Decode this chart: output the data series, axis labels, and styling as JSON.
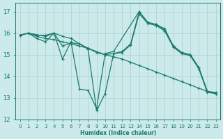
{
  "background_color": "#cceaea",
  "grid_color": "#aed4d4",
  "line_color": "#1a7a6e",
  "xlabel": "Humidex (Indice chaleur)",
  "xlim": [
    -0.5,
    23.5
  ],
  "ylim": [
    12,
    17.4
  ],
  "yticks": [
    12,
    13,
    14,
    15,
    16,
    17
  ],
  "xticks": [
    0,
    1,
    2,
    3,
    4,
    5,
    6,
    7,
    8,
    9,
    10,
    11,
    12,
    13,
    14,
    15,
    16,
    17,
    18,
    19,
    20,
    21,
    22,
    23
  ],
  "lines": [
    {
      "x": [
        0,
        1,
        2,
        3,
        4,
        5,
        6,
        7,
        8,
        9,
        10,
        11,
        12,
        13,
        14,
        15,
        16,
        17,
        18,
        19,
        20,
        21,
        22,
        23
      ],
      "y": [
        15.9,
        16.0,
        15.85,
        15.75,
        15.7,
        15.6,
        15.5,
        15.4,
        15.3,
        15.1,
        15.0,
        14.9,
        14.8,
        14.65,
        14.5,
        14.35,
        14.2,
        14.05,
        13.9,
        13.75,
        13.6,
        13.45,
        13.3,
        13.2
      ]
    },
    {
      "x": [
        0,
        1,
        2,
        3,
        4,
        5,
        6,
        7,
        8,
        9,
        10,
        11,
        12,
        13,
        14,
        15,
        16,
        17,
        18,
        19,
        20,
        21,
        22,
        23
      ],
      "y": [
        15.9,
        16.0,
        15.9,
        15.9,
        16.0,
        15.85,
        15.75,
        15.5,
        15.25,
        12.4,
        13.2,
        15.05,
        15.15,
        15.5,
        17.0,
        16.5,
        16.4,
        16.15,
        15.4,
        15.1,
        15.0,
        14.4,
        13.3,
        13.25
      ]
    },
    {
      "x": [
        0,
        1,
        3,
        4,
        5,
        6,
        7,
        8,
        9,
        10,
        11,
        14,
        15,
        16,
        17,
        18,
        19,
        20,
        21,
        22,
        23
      ],
      "y": [
        15.9,
        16.0,
        15.85,
        16.0,
        14.8,
        15.6,
        13.4,
        13.35,
        12.5,
        15.05,
        15.15,
        17.0,
        16.5,
        16.4,
        16.2,
        15.4,
        15.1,
        15.0,
        14.4,
        13.3,
        13.2
      ]
    },
    {
      "x": [
        0,
        1,
        2,
        3,
        4,
        5,
        6,
        7,
        8,
        10,
        11,
        12,
        13,
        14,
        15,
        16,
        17,
        18,
        19,
        20,
        21,
        22,
        23
      ],
      "y": [
        15.9,
        16.0,
        15.75,
        15.6,
        16.0,
        15.4,
        15.55,
        15.5,
        15.3,
        15.0,
        15.05,
        15.1,
        15.45,
        16.9,
        16.45,
        16.35,
        16.1,
        15.35,
        15.05,
        14.95,
        14.35,
        13.25,
        13.2
      ]
    }
  ]
}
